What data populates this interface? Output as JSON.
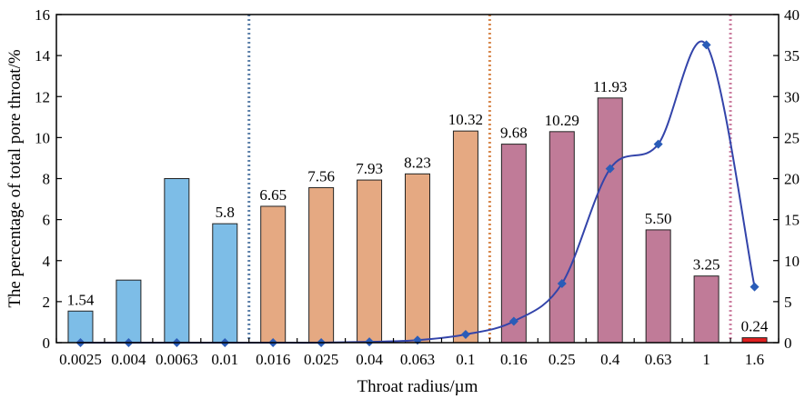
{
  "chart_data": {
    "type": "bar",
    "xlabel": "Throat radius/µm",
    "ylabel": "The percentage of total pore throat/%",
    "ylim": [
      0,
      16
    ],
    "yticks": [
      0,
      2,
      4,
      6,
      8,
      10,
      12,
      14,
      16
    ],
    "y2lim": [
      0,
      40
    ],
    "y2ticks": [
      0,
      5,
      10,
      15,
      20,
      25,
      30,
      35,
      40
    ],
    "x_ticks": [
      "0.0025",
      "0.004",
      "0.0063",
      "0.01",
      "0.016",
      "0.025",
      "0.04",
      "0.063",
      "0.1",
      "0.16",
      "0.25",
      "0.4",
      "0.63",
      "1",
      "1.6"
    ],
    "grid": false,
    "bars": {
      "values": [
        1.54,
        3.05,
        8.0,
        5.8,
        6.65,
        7.56,
        7.93,
        8.23,
        10.32,
        9.68,
        10.29,
        11.93,
        5.5,
        3.25,
        0.24
      ],
      "labels": [
        "1.54",
        "",
        "",
        "5.8",
        "6.65",
        "7.56",
        "7.93",
        "8.23",
        "10.32",
        "9.68",
        "10.29",
        "11.93",
        "5.50",
        "3.25",
        "0.24"
      ],
      "colors": [
        "#7dbde7",
        "#7dbde7",
        "#7dbde7",
        "#7dbde7",
        "#e5a982",
        "#e5a982",
        "#e5a982",
        "#e5a982",
        "#e5a982",
        "#c07b98",
        "#c07b98",
        "#c07b98",
        "#c07b98",
        "#c07b98",
        "#e02020"
      ]
    },
    "line_series": {
      "axis": "right",
      "color": "#3344aa",
      "marker_color": "#2a5cb8",
      "values": [
        0,
        0,
        0,
        0,
        0,
        0,
        0.1,
        0.3,
        1.0,
        2.6,
        7.2,
        21.2,
        24.2,
        36.3,
        6.8
      ]
    },
    "reference_lines": [
      {
        "x": 3.5,
        "color": "#5b7fa8"
      },
      {
        "x": 8.5,
        "color": "#d8894e"
      },
      {
        "x": 13.5,
        "color": "#cc7fa0"
      }
    ]
  }
}
